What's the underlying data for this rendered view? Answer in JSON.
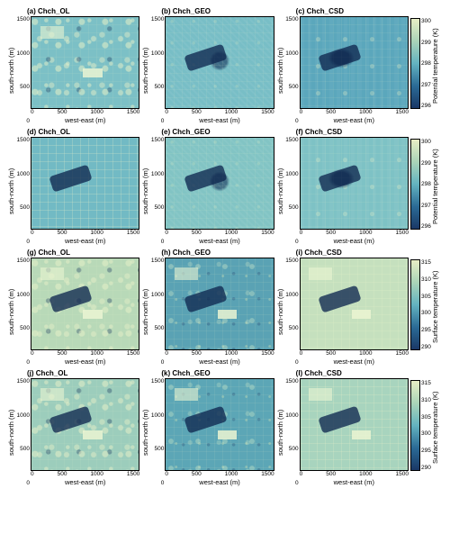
{
  "axis": {
    "xlabel": "west-east (m)",
    "ylabel": "south-north (m)",
    "ticks": [
      "0",
      "500",
      "1000",
      "1500"
    ]
  },
  "rows": [
    {
      "cbar_label": "Potential temperature (K)",
      "cbar_ticks": [
        "296",
        "297",
        "298",
        "299",
        "300"
      ],
      "cbar_gradient": [
        "#1a3866",
        "#2b6b96",
        "#63b3c0",
        "#aad4b8",
        "#e8eec5"
      ],
      "panels": [
        {
          "title": "(a) Chch_OL",
          "bg": "#7cc0c6",
          "style": "blotchy",
          "park": false,
          "light_patch": true
        },
        {
          "title": "(b) Chch_GEO",
          "bg": "#78bec6",
          "style": "noise2",
          "park": true,
          "light_patch": false
        },
        {
          "title": "(c) Chch_CSD",
          "bg": "#5ba7bc",
          "style": "noise3",
          "park": true,
          "light_patch": false
        }
      ]
    },
    {
      "cbar_label": "Potential temperature (K)",
      "cbar_ticks": [
        "296",
        "297",
        "298",
        "299",
        "300"
      ],
      "cbar_gradient": [
        "#1a3866",
        "#2b6b96",
        "#63b3c0",
        "#aad4b8",
        "#e8eec5"
      ],
      "panels": [
        {
          "title": "(d) Chch_OL",
          "bg": "#72bac4",
          "style": "streets",
          "park": true,
          "light_patch": false
        },
        {
          "title": "(e) Chch_GEO",
          "bg": "#82c4c4",
          "style": "noise2",
          "park": true,
          "light_patch": false
        },
        {
          "title": "(f) Chch_CSD",
          "bg": "#7ec2c5",
          "style": "noise3",
          "park": true,
          "light_patch": false
        }
      ]
    },
    {
      "cbar_label": "Surface temperature (K)",
      "cbar_ticks": [
        "290",
        "295",
        "300",
        "305",
        "310",
        "315"
      ],
      "cbar_gradient": [
        "#1a3866",
        "#2b6b96",
        "#63b3c0",
        "#aad4b8",
        "#e8eec5"
      ],
      "panels": [
        {
          "title": "(g) Chch_OL",
          "bg": "#b8d9b8",
          "style": "blotchy",
          "park": true,
          "light_patch": true
        },
        {
          "title": "(h) Chch_GEO",
          "bg": "#5aa2b4",
          "style": "noise1",
          "park": true,
          "light_patch": true
        },
        {
          "title": "(i) Chch_CSD",
          "bg": "#c5e0be",
          "style": "streets",
          "park": true,
          "light_patch": true
        }
      ]
    },
    {
      "cbar_label": "Surface temperature (K)",
      "cbar_ticks": [
        "290",
        "295",
        "300",
        "305",
        "310",
        "315"
      ],
      "cbar_gradient": [
        "#1a3866",
        "#2b6b96",
        "#63b3c0",
        "#aad4b8",
        "#e8eec5"
      ],
      "panels": [
        {
          "title": "(j) Chch_OL",
          "bg": "#9ccdbc",
          "style": "blotchy",
          "park": true,
          "light_patch": true
        },
        {
          "title": "(k) Chch_GEO",
          "bg": "#5ca6b6",
          "style": "noise1",
          "park": true,
          "light_patch": true
        },
        {
          "title": "(l) Chch_CSD",
          "bg": "#a8d4be",
          "style": "streets",
          "park": true,
          "light_patch": true
        }
      ]
    }
  ]
}
